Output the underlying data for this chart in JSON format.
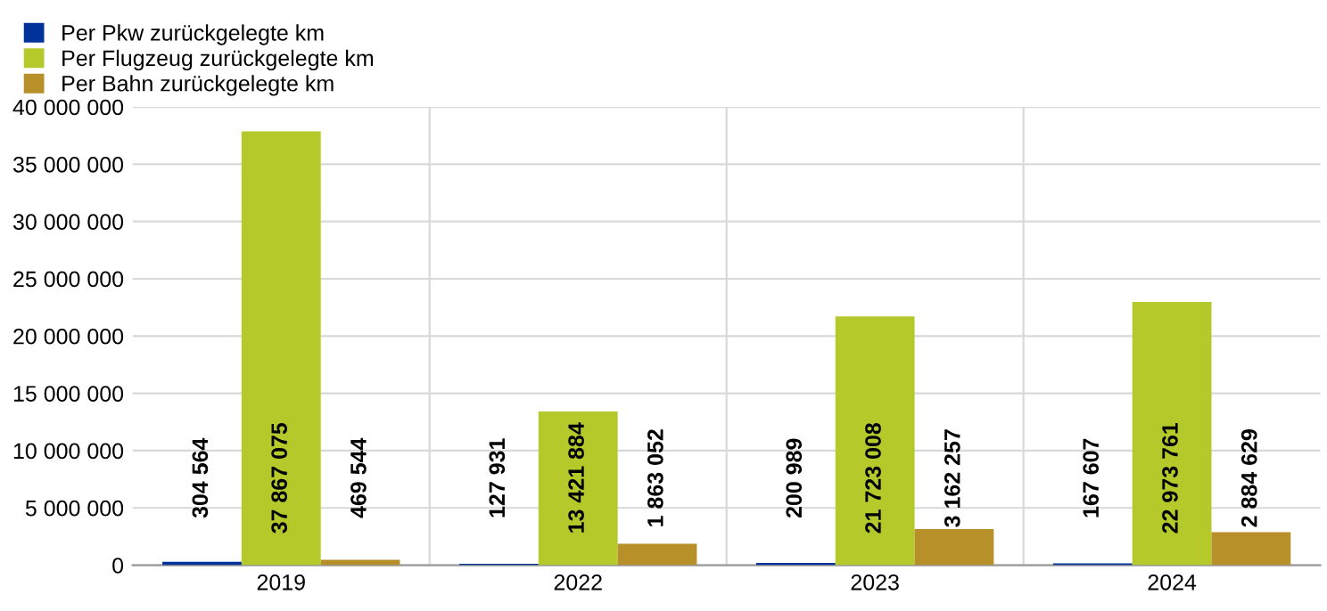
{
  "chart_data": {
    "type": "bar",
    "categories": [
      "2019",
      "2022",
      "2023",
      "2024"
    ],
    "series": [
      {
        "name": "Per Pkw zurückgelegte km",
        "color": "#003299",
        "values": [
          304564,
          127931,
          200989,
          167607
        ],
        "value_labels": [
          "304 564",
          "127 931",
          "200 989",
          "167 607"
        ]
      },
      {
        "name": "Per Flugzeug zurückgelegte km",
        "color": "#b5c92b",
        "values": [
          37867075,
          13421884,
          21723008,
          22973761
        ],
        "value_labels": [
          "37 867 075",
          "13 421 884",
          "21 723 008",
          "22 973 761"
        ]
      },
      {
        "name": "Per Bahn zurückgelegte km",
        "color": "#b8902a",
        "values": [
          469544,
          1863052,
          3162257,
          2884629
        ],
        "value_labels": [
          "469 544",
          "1 863 052",
          "3 162 257",
          "2 884 629"
        ]
      }
    ],
    "ylim": [
      0,
      40000000
    ],
    "yticks": [
      0,
      {
        "value": 5000000,
        "label": "5 000 000"
      },
      {
        "value": 10000000,
        "label": "10 000 000"
      },
      {
        "value": 15000000,
        "label": "15 000 000"
      },
      {
        "value": 20000000,
        "label": "20 000 000"
      },
      {
        "value": 25000000,
        "label": "25 000 000"
      },
      {
        "value": 30000000,
        "label": "30 000 000"
      },
      {
        "value": 35000000,
        "label": "35 000 000"
      },
      {
        "value": 40000000,
        "label": "40 000 000"
      }
    ],
    "grid": true,
    "legend": "top left"
  }
}
